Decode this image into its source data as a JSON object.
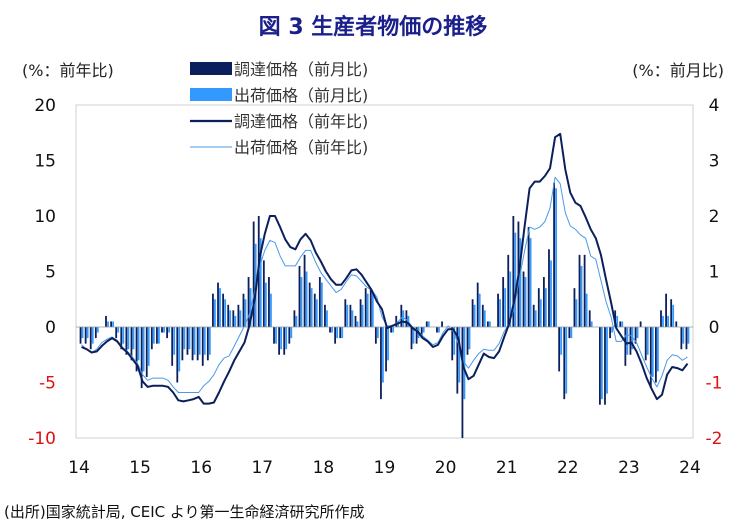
{
  "chart_data": {
    "type": "bar+line",
    "title": "図 3  生産者物価の推移",
    "left_axis_label": "(%：前年比)",
    "right_axis_label": "(%：前月比)",
    "left_ylim": [
      -10,
      20
    ],
    "right_ylim": [
      -2,
      4
    ],
    "left_ticks": [
      "20",
      "15",
      "10",
      "5",
      "0",
      "-5",
      "-10"
    ],
    "right_ticks": [
      "4",
      "3",
      "2",
      "1",
      "0",
      "-1",
      "-2"
    ],
    "x_ticks": [
      "14",
      "15",
      "16",
      "17",
      "18",
      "19",
      "20",
      "21",
      "22",
      "23",
      "24"
    ],
    "x_start": "2014-01",
    "frequency": "monthly",
    "legend": [
      "調達価格（前月比)",
      "出荷価格（前月比)",
      "調達価格（前年比)",
      "出荷価格（前年比)"
    ],
    "source": "(出所)国家統計局, CEIC より第一生命経済研究所作成",
    "colors": {
      "purchase": "#0b1f5c",
      "output_bar": "#3399ff",
      "output_line": "#4a9ae8",
      "title": "#1a1f8c",
      "negative": "#e01010"
    },
    "series": [
      {
        "name": "調達価格（前月比)",
        "axis": "right",
        "kind": "bar",
        "values": [
          -0.3,
          -0.3,
          -0.4,
          -0.2,
          0,
          0.2,
          0.1,
          -0.2,
          -0.4,
          -0.5,
          -0.6,
          -0.8,
          -1.1,
          -0.9,
          -0.4,
          -0.3,
          -0.1,
          -0.2,
          -0.7,
          -1.0,
          -0.6,
          -0.5,
          -0.6,
          -0.6,
          -0.7,
          -0.6,
          0.6,
          0.8,
          0.6,
          0.4,
          0.3,
          0.4,
          0.6,
          0.9,
          1.9,
          2.0,
          1.2,
          0.9,
          -0.3,
          -0.5,
          -0.5,
          -0.3,
          0.3,
          1.1,
          1.3,
          0.8,
          0.6,
          0.9,
          0.4,
          -0.1,
          -0.3,
          -0.2,
          0.5,
          0.4,
          0.2,
          0.5,
          0.7,
          0.7,
          -0.3,
          -1.3,
          -0.8,
          -0.1,
          0.2,
          0.4,
          0.3,
          -0.4,
          -0.3,
          -0.2,
          0.1,
          0,
          -0.1,
          0.1,
          0,
          -0.6,
          -1.2,
          -2.0,
          -0.5,
          0.5,
          0.8,
          0.4,
          0.1,
          0,
          0.6,
          0.9,
          1.3,
          2.0,
          1.9,
          1.0,
          1.8,
          0.4,
          0.7,
          0.9,
          1.4,
          2.6,
          -0.8,
          -1.3,
          -0.2,
          0.7,
          1.3,
          1.3,
          0.3,
          0,
          -1.4,
          -1.4,
          -0.2,
          0.3,
          0.1,
          -0.7,
          -0.5,
          -0.3,
          0.1,
          -0.6,
          -1.1,
          -1.0,
          0.3,
          0.6,
          0.5,
          0.1,
          -0.4,
          -0.4
        ]
      },
      {
        "name": "出荷価格（前月比)",
        "axis": "right",
        "kind": "bar",
        "values": [
          -0.2,
          -0.2,
          -0.3,
          -0.1,
          0,
          0.1,
          0.1,
          -0.1,
          -0.3,
          -0.4,
          -0.4,
          -0.6,
          -0.8,
          -0.7,
          -0.3,
          -0.3,
          -0.1,
          -0.1,
          -0.5,
          -0.8,
          -0.4,
          -0.4,
          -0.5,
          -0.5,
          -0.5,
          -0.5,
          0.5,
          0.7,
          0.5,
          0.3,
          0.2,
          0.3,
          0.5,
          0.7,
          1.5,
          1.6,
          0.8,
          0.6,
          -0.3,
          -0.4,
          -0.4,
          -0.2,
          0.2,
          0.9,
          1.0,
          0.7,
          0.5,
          0.8,
          0.3,
          -0.1,
          -0.2,
          -0.2,
          0.4,
          0.3,
          0.1,
          0.4,
          0.6,
          0.6,
          -0.2,
          -1.0,
          -0.6,
          -0.1,
          0.1,
          0.3,
          0.2,
          -0.3,
          -0.2,
          -0.1,
          0.1,
          0,
          -0.1,
          0,
          0,
          -0.5,
          -1.0,
          -1.3,
          -0.4,
          0.4,
          0.6,
          0.3,
          0.1,
          0,
          0.5,
          0.7,
          1.0,
          1.7,
          1.6,
          0.9,
          1.6,
          0.3,
          0.5,
          0.7,
          1.2,
          2.5,
          -0.5,
          -1.2,
          -0.2,
          0.5,
          1.1,
          0.6,
          0.1,
          0,
          -1.3,
          -1.2,
          -0.1,
          0.2,
          0.1,
          -0.5,
          -0.4,
          -0.2,
          0,
          -0.5,
          -0.9,
          -0.8,
          0.2,
          0.2,
          0.4,
          0,
          -0.3,
          -0.3
        ]
      },
      {
        "name": "調達価格（前年比)",
        "axis": "left",
        "kind": "line",
        "values": [
          -1.8,
          -2.0,
          -2.3,
          -2.2,
          -1.7,
          -1.3,
          -1.0,
          -1.3,
          -1.9,
          -2.3,
          -2.9,
          -3.5,
          -4.9,
          -5.4,
          -5.3,
          -5.3,
          -5.3,
          -5.4,
          -5.9,
          -6.6,
          -6.7,
          -6.6,
          -6.5,
          -6.3,
          -6.9,
          -6.9,
          -6.8,
          -5.9,
          -4.9,
          -4.0,
          -3.0,
          -2.2,
          -1.4,
          0.2,
          2.5,
          6.3,
          8.4,
          10.0,
          10.0,
          9.0,
          7.9,
          7.2,
          7.0,
          7.9,
          8.4,
          7.8,
          6.7,
          5.9,
          5.0,
          4.3,
          3.8,
          3.8,
          4.4,
          5.1,
          5.2,
          4.7,
          4.0,
          3.3,
          2.3,
          1.6,
          -0.1,
          0.1,
          0.3,
          0.5,
          0.4,
          -0.1,
          -0.4,
          -1.0,
          -1.3,
          -1.8,
          -1.6,
          -0.8,
          -0.2,
          -0.2,
          -1.0,
          -3.6,
          -4.7,
          -4.4,
          -3.4,
          -2.4,
          -2.7,
          -2.8,
          -2.2,
          -0.9,
          0.3,
          2.4,
          5.2,
          9.0,
          12.5,
          13.1,
          13.1,
          13.6,
          14.3,
          17.1,
          17.4,
          14.2,
          12.1,
          11.2,
          10.9,
          9.9,
          8.8,
          8.0,
          6.5,
          4.3,
          2.2,
          -0.1,
          -0.8,
          -1.5,
          -1.4,
          -2.2,
          -3.3,
          -4.6,
          -5.6,
          -6.5,
          -6.1,
          -4.3,
          -3.6,
          -3.7,
          -3.9,
          -3.3
        ]
      },
      {
        "name": "出荷価格（前年比)",
        "axis": "left",
        "kind": "line",
        "values": [
          -1.6,
          -2.0,
          -2.3,
          -2.0,
          -1.4,
          -1.1,
          -0.9,
          -1.2,
          -1.8,
          -2.2,
          -2.7,
          -3.3,
          -4.3,
          -4.8,
          -4.6,
          -4.6,
          -4.6,
          -4.8,
          -5.4,
          -5.9,
          -5.9,
          -5.9,
          -5.9,
          -5.9,
          -5.3,
          -4.9,
          -4.3,
          -3.4,
          -2.8,
          -2.6,
          -1.7,
          -0.8,
          0.1,
          1.2,
          3.3,
          5.5,
          6.9,
          7.8,
          7.6,
          6.4,
          5.5,
          5.5,
          5.5,
          6.3,
          6.9,
          6.9,
          5.8,
          4.9,
          4.3,
          3.7,
          3.1,
          3.4,
          4.1,
          4.7,
          4.6,
          4.1,
          3.6,
          3.3,
          2.7,
          0.9,
          0.1,
          0.1,
          0.4,
          0.9,
          0.6,
          0,
          -0.3,
          -0.8,
          -1.2,
          -1.6,
          -1.4,
          -0.5,
          0.1,
          -0.4,
          -1.5,
          -3.1,
          -3.7,
          -3.0,
          -2.4,
          -2.0,
          -2.1,
          -2.1,
          -1.5,
          -0.4,
          0.3,
          1.7,
          4.4,
          6.8,
          9.0,
          8.8,
          9.0,
          9.5,
          10.7,
          13.5,
          12.9,
          10.3,
          9.1,
          8.8,
          8.3,
          8.0,
          6.4,
          6.1,
          4.2,
          2.3,
          0.9,
          -1.3,
          -1.3,
          -0.7,
          -0.8,
          -1.4,
          -2.5,
          -3.6,
          -4.6,
          -5.4,
          -4.4,
          -3.0,
          -2.5,
          -2.6,
          -3.0,
          -2.7
        ]
      }
    ]
  }
}
